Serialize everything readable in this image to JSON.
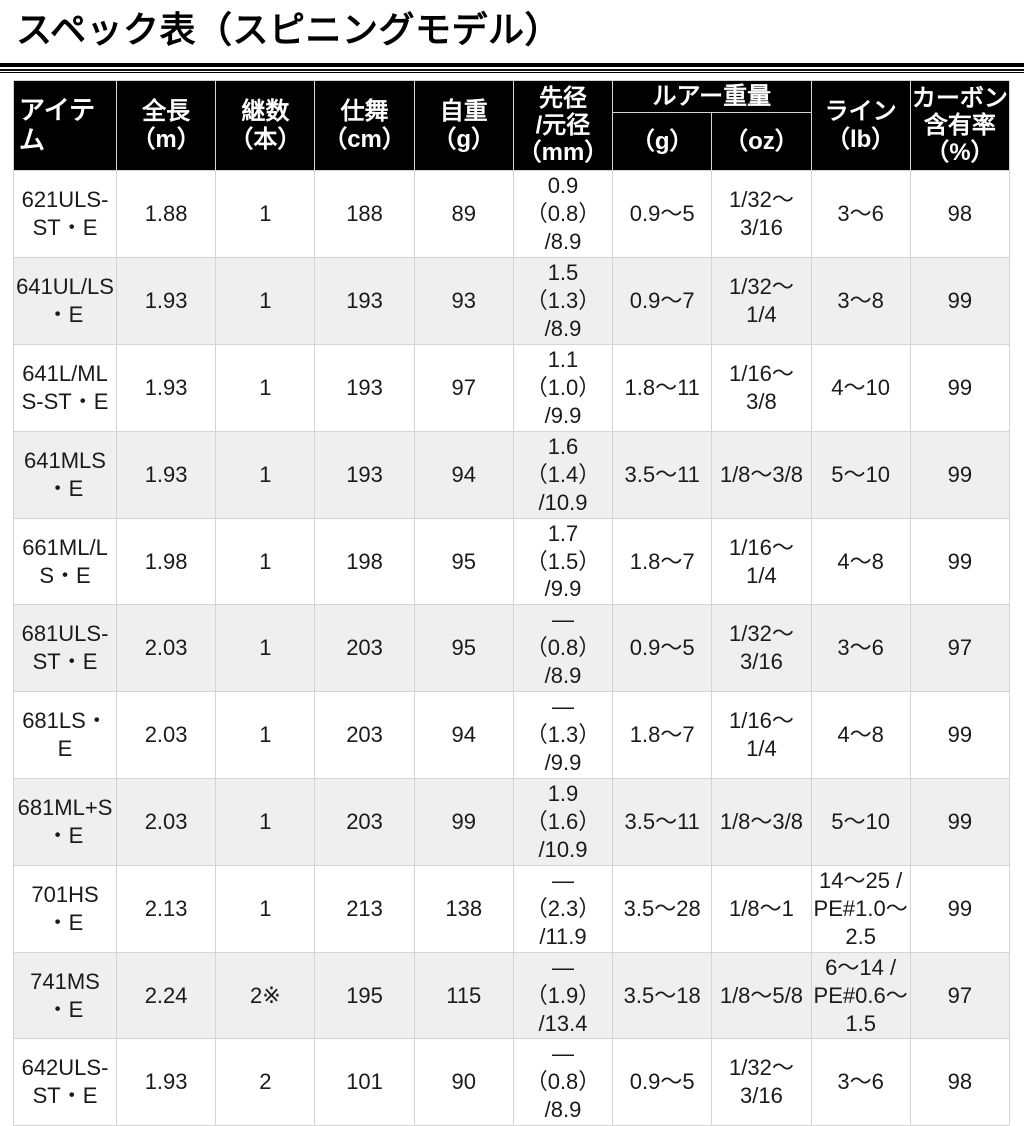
{
  "page": {
    "title": "スペック表（スピニングモデル）"
  },
  "colors": {
    "header_bg": "#000000",
    "header_text": "#ffffff",
    "row_alt": "#efefef",
    "border": "#d4d4d4",
    "text": "#1a1a1a",
    "page_bg": "#ffffff"
  },
  "table": {
    "headers": {
      "item": "アイテム",
      "length": "全長\n（m）",
      "pieces": "継数\n（本）",
      "closed": "仕舞\n（cm）",
      "weight": "自重\n（g）",
      "tip_butt": "先径\n/元径\n（mm）",
      "lure_weight": "ルアー重量",
      "lure_g": "（g）",
      "lure_oz": "（oz）",
      "line": "ライン\n（lb）",
      "carbon": "カーボン\n含有率\n（%）"
    },
    "rows": [
      {
        "item": "621ULS-\nST・E",
        "length": "1.88",
        "pieces": "1",
        "closed": "188",
        "weight": "89",
        "tip": "0.9（0.8）\n/8.9",
        "lure_g": "0.9～5",
        "lure_oz": "1/32～\n3/16",
        "line": "3～6",
        "carbon": "98"
      },
      {
        "item": "641UL/LS\n・E",
        "length": "1.93",
        "pieces": "1",
        "closed": "193",
        "weight": "93",
        "tip": "1.5（1.3）\n/8.9",
        "lure_g": "0.9～7",
        "lure_oz": "1/32～\n1/4",
        "line": "3～8",
        "carbon": "99"
      },
      {
        "item": "641L/ML\nS-ST・E",
        "length": "1.93",
        "pieces": "1",
        "closed": "193",
        "weight": "97",
        "tip": "1.1（1.0）\n/9.9",
        "lure_g": "1.8～11",
        "lure_oz": "1/16～\n3/8",
        "line": "4～10",
        "carbon": "99"
      },
      {
        "item": "641MLS\n・E",
        "length": "1.93",
        "pieces": "1",
        "closed": "193",
        "weight": "94",
        "tip": "1.6（1.4）\n/10.9",
        "lure_g": "3.5～11",
        "lure_oz": "1/8～3/8",
        "line": "5～10",
        "carbon": "99"
      },
      {
        "item": "661ML/L\nS・E",
        "length": "1.98",
        "pieces": "1",
        "closed": "198",
        "weight": "95",
        "tip": "1.7（1.5）\n/9.9",
        "lure_g": "1.8～7",
        "lure_oz": "1/16～\n1/4",
        "line": "4～8",
        "carbon": "99"
      },
      {
        "item": "681ULS-\nST・E",
        "length": "2.03",
        "pieces": "1",
        "closed": "203",
        "weight": "95",
        "tip": "―（0.8）\n/8.9",
        "lure_g": "0.9～5",
        "lure_oz": "1/32～\n3/16",
        "line": "3～6",
        "carbon": "97"
      },
      {
        "item": "681LS・E",
        "length": "2.03",
        "pieces": "1",
        "closed": "203",
        "weight": "94",
        "tip": "―（1.3）\n/9.9",
        "lure_g": "1.8～7",
        "lure_oz": "1/16～\n1/4",
        "line": "4～8",
        "carbon": "99"
      },
      {
        "item": "681ML+S\n・E",
        "length": "2.03",
        "pieces": "1",
        "closed": "203",
        "weight": "99",
        "tip": "1.9（1.6）\n/10.9",
        "lure_g": "3.5～11",
        "lure_oz": "1/8～3/8",
        "line": "5～10",
        "carbon": "99"
      },
      {
        "item": "701HS\n・E",
        "length": "2.13",
        "pieces": "1",
        "closed": "213",
        "weight": "138",
        "tip": "―（2.3）\n/11.9",
        "lure_g": "3.5～28",
        "lure_oz": "1/8～1",
        "line": "14～25 /\nPE#1.0～\n2.5",
        "carbon": "99"
      },
      {
        "item": "741MS\n・E",
        "length": "2.24",
        "pieces": "2※",
        "closed": "195",
        "weight": "115",
        "tip": "―（1.9）\n/13.4",
        "lure_g": "3.5～18",
        "lure_oz": "1/8～5/8",
        "line": "6～14 /\nPE#0.6～\n1.5",
        "carbon": "97"
      },
      {
        "item": "642ULS-\nST・E",
        "length": "1.93",
        "pieces": "2",
        "closed": "101",
        "weight": "90",
        "tip": "―（0.8）\n/8.9",
        "lure_g": "0.9～5",
        "lure_oz": "1/32～\n3/16",
        "line": "3～6",
        "carbon": "98"
      }
    ]
  }
}
